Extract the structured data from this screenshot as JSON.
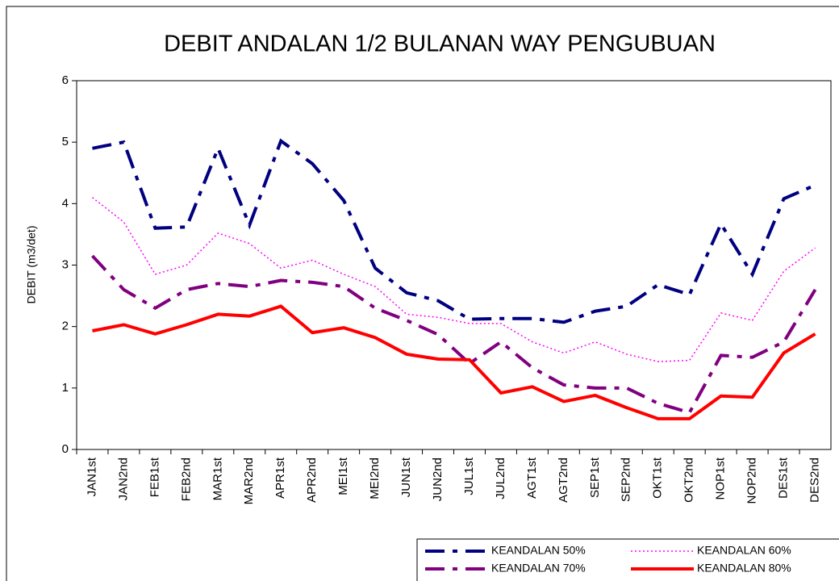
{
  "chart_data": {
    "type": "line",
    "title": "DEBIT ANDALAN 1/2 BULANAN WAY PENGUBUAN",
    "y_label": "DEBIT (m3/det)",
    "categories": [
      "JAN1st",
      "JAN2nd",
      "FEB1st",
      "FEB2nd",
      "MAR1st",
      "MAR2nd",
      "APR1st",
      "APR2nd",
      "MEI1st",
      "MEI2nd",
      "JUN1st",
      "JUN2nd",
      "JUL1st",
      "JUL2nd",
      "AGT1st",
      "AGT2nd",
      "SEP1st",
      "SEP2nd",
      "OKT1st",
      "OKT2nd",
      "NOP1st",
      "NOP2nd",
      "DES1st",
      "DES2nd"
    ],
    "series": [
      {
        "name": "KEANDALAN 50%",
        "color": "#000080",
        "dash": "dash-dot",
        "values": [
          4.9,
          5.0,
          3.6,
          3.62,
          4.9,
          3.65,
          5.02,
          4.65,
          4.05,
          2.95,
          2.55,
          2.42,
          2.12,
          2.13,
          2.13,
          2.07,
          2.25,
          2.33,
          2.68,
          2.52,
          3.67,
          2.85,
          4.08,
          4.3
        ]
      },
      {
        "name": "KEANDALAN 60%",
        "color": "#ff00ff",
        "dash": "dotted",
        "values": [
          4.1,
          3.7,
          2.85,
          3.0,
          3.52,
          3.35,
          2.95,
          3.08,
          2.85,
          2.65,
          2.2,
          2.15,
          2.05,
          2.05,
          1.75,
          1.57,
          1.75,
          1.55,
          1.43,
          1.45,
          2.22,
          2.1,
          2.9,
          3.28
        ]
      },
      {
        "name": "KEANDALAN 70%",
        "color": "#800080",
        "dash": "dash-dot",
        "values": [
          3.15,
          2.6,
          2.3,
          2.6,
          2.7,
          2.65,
          2.75,
          2.72,
          2.65,
          2.3,
          2.1,
          1.87,
          1.4,
          1.75,
          1.33,
          1.05,
          1.0,
          1.0,
          0.75,
          0.6,
          1.53,
          1.5,
          1.75,
          2.6
        ]
      },
      {
        "name": "KEANDALAN 80%",
        "color": "#ff0000",
        "dash": "solid",
        "values": [
          1.93,
          2.03,
          1.88,
          2.03,
          2.2,
          2.17,
          2.33,
          1.9,
          1.98,
          1.82,
          1.55,
          1.47,
          1.46,
          0.92,
          1.02,
          0.78,
          0.88,
          0.68,
          0.5,
          0.5,
          0.87,
          0.85,
          1.57,
          1.88
        ]
      }
    ],
    "ylim": [
      0,
      6
    ],
    "yticks": [
      0,
      1,
      2,
      3,
      4,
      5,
      6
    ],
    "grid": false
  }
}
